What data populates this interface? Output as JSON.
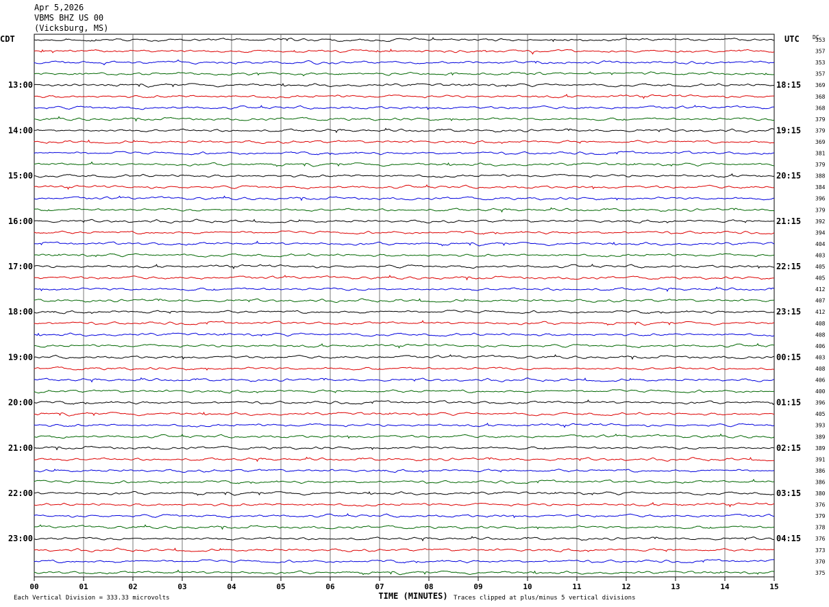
{
  "header": {
    "date": "Apr 5,2026",
    "station": "VBMS BHZ US 00",
    "location": "(Vicksburg, MS)"
  },
  "chart_data": {
    "type": "line",
    "left_axis_label": "CDT",
    "right_axis_label": "UTC",
    "dc_label": "DC",
    "x_axis_label": "TIME (MINUTES)",
    "x_ticks": [
      "00",
      "01",
      "02",
      "03",
      "04",
      "05",
      "06",
      "07",
      "08",
      "09",
      "10",
      "11",
      "12",
      "13",
      "14",
      "15"
    ],
    "x_range": [
      0,
      15
    ],
    "grid": true,
    "trace_colors": [
      "#000000",
      "#dd0000",
      "#0000dd",
      "#006600"
    ],
    "cdt_hour_labels": [
      "13:00",
      "14:00",
      "15:00",
      "16:00",
      "17:00",
      "18:00",
      "19:00",
      "20:00",
      "21:00",
      "22:00",
      "23:00"
    ],
    "utc_hour_labels": [
      "18:15",
      "19:15",
      "20:15",
      "21:15",
      "22:15",
      "23:15",
      "00:15",
      "01:15",
      "02:15",
      "03:15",
      "04:15"
    ],
    "dc_offsets": [
      353,
      357,
      353,
      357,
      369,
      368,
      368,
      379,
      379,
      369,
      381,
      379,
      388,
      384,
      396,
      379,
      392,
      394,
      404,
      403,
      405,
      405,
      412,
      407,
      412,
      408,
      408,
      406,
      403,
      408,
      406,
      400,
      396,
      405,
      393,
      389,
      389,
      391,
      386,
      386,
      380,
      376,
      379,
      378,
      376,
      373,
      370,
      375
    ],
    "footer_left": "Each Vertical Division =  333.33 microvolts",
    "footer_right": "Traces clipped at plus/minus 5 vertical divisions"
  }
}
